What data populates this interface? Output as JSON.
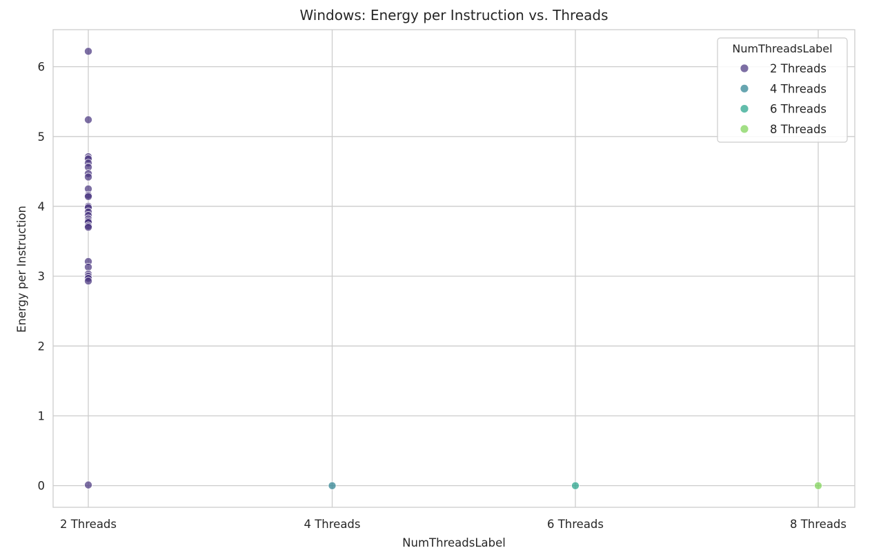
{
  "chart_data": {
    "type": "scatter",
    "title": "Windows: Energy per Instruction vs. Threads",
    "xlabel": "NumThreadsLabel",
    "ylabel": "Energy per Instruction",
    "categories": [
      "2 Threads",
      "4 Threads",
      "6 Threads",
      "8 Threads"
    ],
    "ylim": [
      -0.31,
      6.53
    ],
    "yticks": [
      0,
      1,
      2,
      3,
      4,
      5,
      6
    ],
    "grid": true,
    "legend": {
      "title": "NumThreadsLabel",
      "placement": "top-right",
      "entries": [
        "2 Threads",
        "4 Threads",
        "6 Threads",
        "8 Threads"
      ]
    },
    "colors": {
      "2 Threads": "#46327e",
      "4 Threads": "#277f8e",
      "6 Threads": "#1fa187",
      "8 Threads": "#7ad151"
    },
    "series": [
      {
        "name": "2 Threads",
        "values": [
          6.22,
          5.24,
          4.71,
          4.68,
          4.62,
          4.56,
          4.47,
          4.42,
          4.25,
          4.16,
          4.14,
          4.0,
          3.98,
          3.92,
          3.87,
          3.82,
          3.79,
          3.77,
          3.72,
          3.7,
          3.21,
          3.13,
          3.03,
          3.0,
          2.97,
          2.93,
          0.01
        ]
      },
      {
        "name": "4 Threads",
        "values": [
          0.0
        ]
      },
      {
        "name": "6 Threads",
        "values": [
          0.0
        ]
      },
      {
        "name": "8 Threads",
        "values": [
          0.0
        ]
      }
    ]
  }
}
